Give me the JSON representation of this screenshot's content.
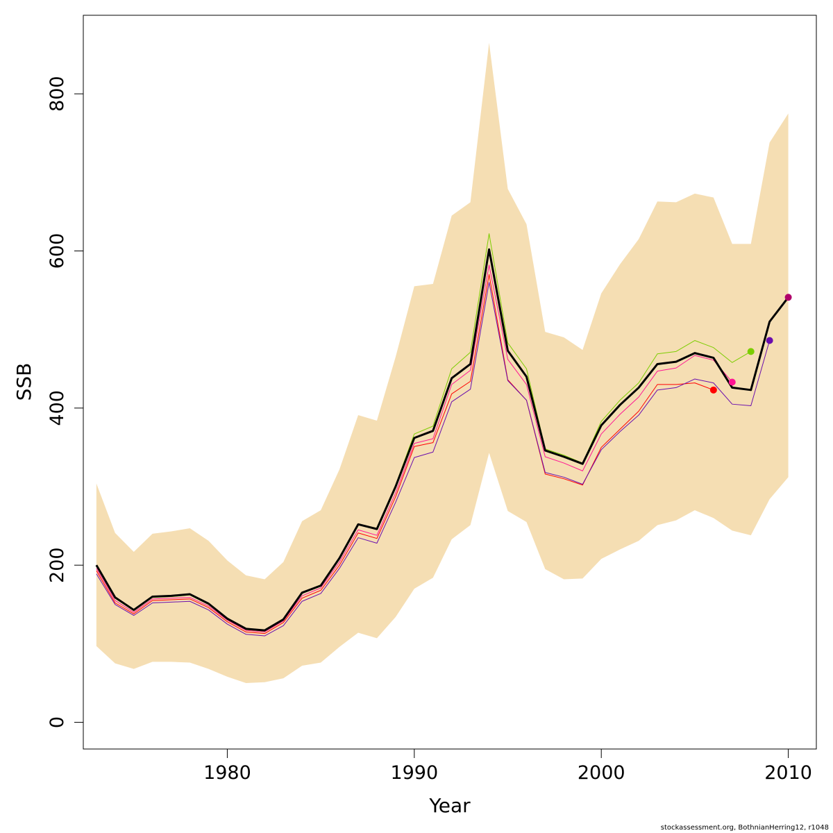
{
  "chart_data": {
    "type": "line",
    "xlabel": "Year",
    "ylabel": "SSB",
    "xlim": [
      1972.3,
      2011.5
    ],
    "ylim": [
      -34,
      900
    ],
    "x_ticks": [
      1980,
      1990,
      2000,
      2010
    ],
    "y_ticks": [
      0,
      200,
      400,
      600,
      800
    ],
    "grid": false,
    "legend": "none",
    "band": {
      "color": "#F5DEB3",
      "x": [
        1973,
        1974,
        1975,
        1976,
        1977,
        1978,
        1979,
        1980,
        1981,
        1982,
        1983,
        1984,
        1985,
        1986,
        1987,
        1988,
        1989,
        1990,
        1991,
        1992,
        1993,
        1994,
        1995,
        1996,
        1997,
        1998,
        1999,
        2000,
        2001,
        2002,
        2003,
        2004,
        2005,
        2006,
        2007,
        2008,
        2009,
        2010
      ],
      "upper": [
        304,
        241,
        217,
        240,
        243,
        247,
        231,
        206,
        187,
        182,
        204,
        256,
        270,
        322,
        391,
        384,
        465,
        555,
        558,
        645,
        662,
        865,
        679,
        634,
        497,
        490,
        474,
        546,
        583,
        615,
        663,
        662,
        673,
        668,
        609,
        609,
        738,
        775
      ],
      "lower": [
        97,
        75,
        68,
        77,
        77,
        76,
        68,
        58,
        50,
        51,
        56,
        72,
        76,
        96,
        114,
        107,
        134,
        170,
        184,
        233,
        251,
        343,
        269,
        255,
        195,
        182,
        183,
        208,
        220,
        231,
        251,
        257,
        270,
        260,
        244,
        238,
        284,
        312
      ]
    },
    "series": [
      {
        "color": "#000000",
        "x": [
          1973,
          1974,
          1975,
          1976,
          1977,
          1978,
          1979,
          1980,
          1981,
          1982,
          1983,
          1984,
          1985,
          1986,
          1987,
          1988,
          1989,
          1990,
          1991,
          1992,
          1993,
          1994,
          1995,
          1996,
          1997,
          1998,
          1999,
          2000,
          2001,
          2002,
          2003,
          2004,
          2005,
          2006,
          2007,
          2008,
          2009,
          2010
        ],
        "values": [
          200,
          159,
          143,
          160,
          161,
          163,
          151,
          132,
          119,
          117,
          131,
          165,
          174,
          209,
          252,
          246,
          300,
          362,
          371,
          438,
          456,
          602,
          473,
          440,
          346,
          338,
          329,
          378,
          404,
          426,
          456,
          459,
          470,
          464,
          426,
          423,
          510,
          541
        ]
      },
      {
        "color": "#FF0000",
        "x": [
          1973,
          1974,
          1975,
          1976,
          1977,
          1978,
          1979,
          1980,
          1981,
          1982,
          1983,
          1984,
          1985,
          1986,
          1987,
          1988,
          1989,
          1990,
          1991,
          1992,
          1993,
          1994,
          1995,
          1996,
          1997,
          1998,
          1999,
          2000,
          2001,
          2002,
          2003,
          2004,
          2005,
          2006
        ],
        "values": [
          193,
          152,
          138,
          155,
          156,
          157,
          146,
          128,
          115,
          113,
          127,
          158,
          168,
          200,
          241,
          234,
          287,
          351,
          356,
          418,
          434,
          570,
          436,
          410,
          316,
          310,
          302,
          350,
          373,
          396,
          430,
          430,
          432,
          423
        ],
        "endpoint": {
          "x": 2006,
          "y": 423
        }
      },
      {
        "color": "#FF1493",
        "x": [
          1973,
          1974,
          1975,
          1976,
          1977,
          1978,
          1979,
          1980,
          1981,
          1982,
          1983,
          1984,
          1985,
          1986,
          1987,
          1988,
          1989,
          1990,
          1991,
          1992,
          1993,
          1994,
          1995,
          1996,
          1997,
          1998,
          1999,
          2000,
          2001,
          2002,
          2003,
          2004,
          2005,
          2006,
          2007
        ],
        "values": [
          196,
          155,
          140,
          157,
          158,
          159,
          148,
          130,
          117,
          115,
          129,
          161,
          171,
          204,
          245,
          238,
          292,
          355,
          361,
          430,
          448,
          582,
          462,
          430,
          338,
          330,
          320,
          367,
          392,
          414,
          447,
          451,
          467,
          461,
          433
        ],
        "endpoint": {
          "x": 2007,
          "y": 433
        }
      },
      {
        "color": "#7CCD00",
        "x": [
          1973,
          1974,
          1975,
          1976,
          1977,
          1978,
          1979,
          1980,
          1981,
          1982,
          1983,
          1984,
          1985,
          1986,
          1987,
          1988,
          1989,
          1990,
          1991,
          1992,
          1993,
          1994,
          1995,
          1996,
          1997,
          1998,
          1999,
          2000,
          2001,
          2002,
          2003,
          2004,
          2005,
          2006,
          2007,
          2008
        ],
        "values": [
          199,
          158,
          142,
          159,
          160,
          162,
          150,
          131,
          118,
          116,
          130,
          165,
          175,
          210,
          252,
          247,
          302,
          367,
          377,
          450,
          471,
          622,
          483,
          450,
          348,
          340,
          330,
          383,
          410,
          432,
          469,
          472,
          486,
          477,
          458,
          472
        ],
        "endpoint": {
          "x": 2008,
          "y": 472
        }
      },
      {
        "color": "#6A0DAD",
        "x": [
          1973,
          1974,
          1975,
          1976,
          1977,
          1978,
          1979,
          1980,
          1981,
          1982,
          1983,
          1984,
          1985,
          1986,
          1987,
          1988,
          1989,
          1990,
          1991,
          1992,
          1993,
          1994,
          1995,
          1996,
          1997,
          1998,
          1999,
          2000,
          2001,
          2002,
          2003,
          2004,
          2005,
          2006,
          2007,
          2008,
          2009
        ],
        "values": [
          189,
          150,
          136,
          152,
          153,
          154,
          143,
          125,
          112,
          110,
          123,
          154,
          164,
          196,
          235,
          228,
          280,
          337,
          344,
          408,
          424,
          560,
          435,
          410,
          318,
          312,
          303,
          347,
          370,
          391,
          423,
          426,
          437,
          432,
          405,
          403,
          486
        ],
        "endpoint": {
          "x": 2009,
          "y": 486
        }
      },
      {
        "color": "#B0006A",
        "x": [
          2008,
          2009,
          2010
        ],
        "values": [
          423,
          510,
          541
        ],
        "endpoint": {
          "x": 2010,
          "y": 541
        }
      }
    ]
  },
  "footer": "stockassessment.org, BothnianHerring12, r1048"
}
